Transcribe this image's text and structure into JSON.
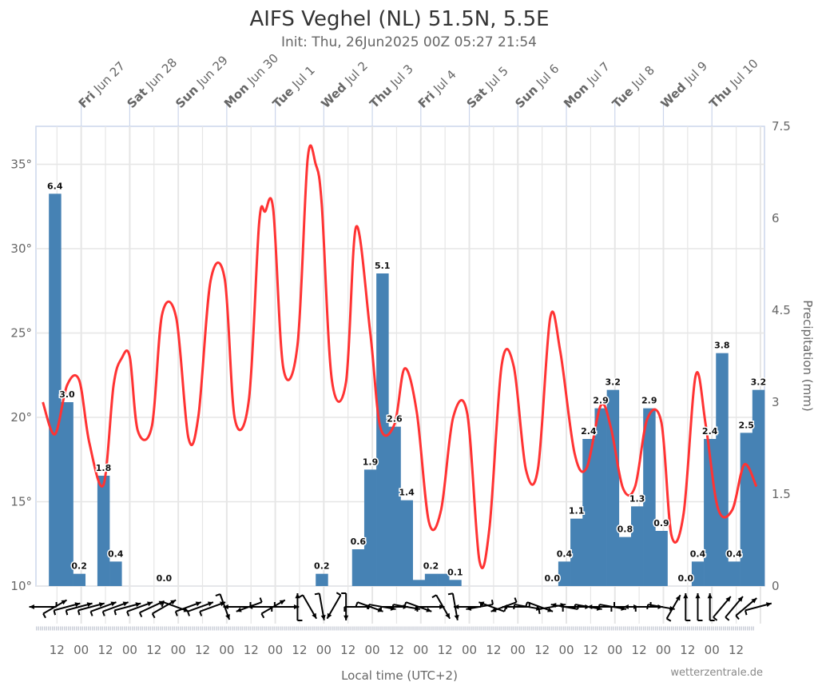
{
  "chart_data": {
    "type": "bar+line",
    "title": "AIFS Veghel (NL) 51.5N, 5.5E",
    "subtitle": "Init: Thu, 26Jun2025 00Z 05:27 21:54",
    "xlabel": "Local time (UTC+2)",
    "ylabel_right": "Precipitation (mm)",
    "credit": "wetterzentrale.de",
    "y_left": {
      "range": [
        10,
        37.25
      ],
      "ticks": [
        "10°",
        "15°",
        "20°",
        "25°",
        "30°",
        "35°"
      ],
      "tick_values": [
        10,
        15,
        20,
        25,
        30,
        35
      ]
    },
    "y_right": {
      "range": [
        0,
        7.5
      ],
      "ticks": [
        "0",
        "1.5",
        "3",
        "4.5",
        "6",
        "7.5"
      ],
      "tick_values": [
        0,
        1.5,
        3,
        4.5,
        6,
        7.5
      ]
    },
    "x_range": [
      "Jun 26 02:00",
      "Jul 11 02:00"
    ],
    "grid": true,
    "top_day_labels": [
      {
        "wd": "Fri",
        "date": "Jun 27"
      },
      {
        "wd": "Sat",
        "date": "Jun 28"
      },
      {
        "wd": "Sun",
        "date": "Jun 29"
      },
      {
        "wd": "Mon",
        "date": "Jun 30"
      },
      {
        "wd": "Tue",
        "date": "Jul 1"
      },
      {
        "wd": "Wed",
        "date": "Jul 2"
      },
      {
        "wd": "Thu",
        "date": "Jul 3"
      },
      {
        "wd": "Fri",
        "date": "Jul 4"
      },
      {
        "wd": "Sat",
        "date": "Jul 5"
      },
      {
        "wd": "Sun",
        "date": "Jul 6"
      },
      {
        "wd": "Mon",
        "date": "Jul 7"
      },
      {
        "wd": "Tue",
        "date": "Jul 8"
      },
      {
        "wd": "Wed",
        "date": "Jul 9"
      },
      {
        "wd": "Thu",
        "date": "Jul 10"
      }
    ],
    "bottom_ticks": [
      "12",
      "00",
      "12",
      "00",
      "12",
      "00",
      "12",
      "00",
      "12",
      "00",
      "12",
      "00",
      "12",
      "00",
      "12",
      "00",
      "12",
      "00",
      "12",
      "00",
      "12",
      "00",
      "12",
      "00",
      "12",
      "00",
      "12",
      "00",
      "12"
    ],
    "colors": {
      "precipitation": "#4682b4",
      "temperature": "#ff3333",
      "grid": "#e6e6e6",
      "frame": "#ccd6eb",
      "wind": "#000000"
    },
    "precipitation_6h": [
      {
        "t": "Jun 26 08:00",
        "v": 6.4,
        "label": "6.4"
      },
      {
        "t": "Jun 26 14:00",
        "v": 3.0,
        "label": "3.0"
      },
      {
        "t": "Jun 26 20:00",
        "v": 0.2,
        "label": "0.2"
      },
      {
        "t": "Jun 27 08:00",
        "v": 1.8,
        "label": "1.8"
      },
      {
        "t": "Jun 27 14:00",
        "v": 0.4,
        "label": "0.4"
      },
      {
        "t": "Jun 28 14:00",
        "v": 0.0,
        "label": "0.0"
      },
      {
        "t": "Jul 1 20:00",
        "v": 0.2,
        "label": "0.2"
      },
      {
        "t": "Jul 2 14:00",
        "v": 0.6,
        "label": "0.6"
      },
      {
        "t": "Jul 2 20:00",
        "v": 1.9,
        "label": "1.9"
      },
      {
        "t": "Jul 3 02:00",
        "v": 5.1,
        "label": "5.1"
      },
      {
        "t": "Jul 3 08:00",
        "v": 2.6,
        "label": "2.6"
      },
      {
        "t": "Jul 3 14:00",
        "v": 1.4,
        "label": "1.4"
      },
      {
        "t": "Jul 3 20:00",
        "v": 0.1,
        "label": ""
      },
      {
        "t": "Jul 4 02:00",
        "v": 0.2,
        "label": "0.2"
      },
      {
        "t": "Jul 4 08:00",
        "v": 0.2,
        "label": ""
      },
      {
        "t": "Jul 4 14:00",
        "v": 0.1,
        "label": "0.1"
      },
      {
        "t": "Jul 6 14:00",
        "v": 0.0,
        "label": "0.0"
      },
      {
        "t": "Jul 6 20:00",
        "v": 0.4,
        "label": "0.4"
      },
      {
        "t": "Jul 7 02:00",
        "v": 1.1,
        "label": "1.1"
      },
      {
        "t": "Jul 7 08:00",
        "v": 2.4,
        "label": "2.4"
      },
      {
        "t": "Jul 7 14:00",
        "v": 2.9,
        "label": "2.9"
      },
      {
        "t": "Jul 7 20:00",
        "v": 3.2,
        "label": "3.2"
      },
      {
        "t": "Jul 8 02:00",
        "v": 0.8,
        "label": "0.8"
      },
      {
        "t": "Jul 8 08:00",
        "v": 1.3,
        "label": "1.3"
      },
      {
        "t": "Jul 8 14:00",
        "v": 2.9,
        "label": "2.9"
      },
      {
        "t": "Jul 8 20:00",
        "v": 0.9,
        "label": "0.9"
      },
      {
        "t": "Jul 9 08:00",
        "v": 0.0,
        "label": "0.0"
      },
      {
        "t": "Jul 9 14:00",
        "v": 0.4,
        "label": "0.4"
      },
      {
        "t": "Jul 9 20:00",
        "v": 2.4,
        "label": "2.4"
      },
      {
        "t": "Jul 10 02:00",
        "v": 3.8,
        "label": "3.8"
      },
      {
        "t": "Jul 10 08:00",
        "v": 0.4,
        "label": "0.4"
      },
      {
        "t": "Jul 10 14:00",
        "v": 2.5,
        "label": "2.5"
      },
      {
        "t": "Jul 10 20:00",
        "v": 3.2,
        "label": "3.2"
      }
    ],
    "temperature": [
      [
        "Jun 26 05:00",
        20.9
      ],
      [
        "Jun 26 11:00",
        19.0
      ],
      [
        "Jun 26 17:00",
        21.9
      ],
      [
        "Jun 26 23:00",
        22.2
      ],
      [
        "Jun 27 04:00",
        18.5
      ],
      [
        "Jun 27 11:00",
        16.0
      ],
      [
        "Jun 27 16:00",
        21.9
      ],
      [
        "Jun 27 20:00",
        23.5
      ],
      [
        "Jun 28 00:00",
        23.6
      ],
      [
        "Jun 28 04:00",
        19.2
      ],
      [
        "Jun 28 11:00",
        19.5
      ],
      [
        "Jun 28 16:00",
        26.1
      ],
      [
        "Jun 28 23:00",
        25.9
      ],
      [
        "Jun 29 05:00",
        18.8
      ],
      [
        "Jun 29 10:00",
        20.1
      ],
      [
        "Jun 29 16:00",
        28.1
      ],
      [
        "Jun 29 23:00",
        28.2
      ],
      [
        "Jun 30 04:00",
        19.9
      ],
      [
        "Jun 30 11:00",
        21.1
      ],
      [
        "Jun 30 16:00",
        31.5
      ],
      [
        "Jun 30 19:00",
        32.2
      ],
      [
        "Jun 30 23:00",
        32.3
      ],
      [
        "Jul 1 04:00",
        22.9
      ],
      [
        "Jul 1 11:00",
        24.3
      ],
      [
        "Jul 1 16:00",
        35.3
      ],
      [
        "Jul 1 20:00",
        35.0
      ],
      [
        "Jul 1 23:00",
        32.6
      ],
      [
        "Jul 2 04:00",
        22.2
      ],
      [
        "Jul 2 11:00",
        22.1
      ],
      [
        "Jul 2 16:00",
        31.3
      ],
      [
        "Jul 2 23:00",
        25.0
      ],
      [
        "Jul 3 04:00",
        19.4
      ],
      [
        "Jul 3 11:00",
        19.6
      ],
      [
        "Jul 3 16:00",
        22.9
      ],
      [
        "Jul 3 22:00",
        20.3
      ],
      [
        "Jul 4 04:00",
        13.8
      ],
      [
        "Jul 4 10:00",
        14.5
      ],
      [
        "Jul 4 16:00",
        20.0
      ],
      [
        "Jul 4 23:00",
        20.2
      ],
      [
        "Jul 5 05:00",
        11.5
      ],
      [
        "Jul 5 10:00",
        13.5
      ],
      [
        "Jul 5 16:00",
        23.1
      ],
      [
        "Jul 5 22:00",
        23.0
      ],
      [
        "Jul 6 04:00",
        16.9
      ],
      [
        "Jul 6 10:00",
        17.0
      ],
      [
        "Jul 6 16:00",
        25.9
      ],
      [
        "Jul 6 21:00",
        23.9
      ],
      [
        "Jul 7 04:00",
        17.9
      ],
      [
        "Jul 7 10:00",
        17.0
      ],
      [
        "Jul 7 17:00",
        20.7
      ],
      [
        "Jul 7 22:00",
        19.4
      ],
      [
        "Jul 8 04:00",
        15.8
      ],
      [
        "Jul 8 10:00",
        15.9
      ],
      [
        "Jul 8 16:00",
        19.9
      ],
      [
        "Jul 8 23:00",
        19.7
      ],
      [
        "Jul 9 04:00",
        13.0
      ],
      [
        "Jul 9 10:00",
        14.3
      ],
      [
        "Jul 9 16:00",
        22.5
      ],
      [
        "Jul 9 21:00",
        19.5
      ],
      [
        "Jul 10 03:00",
        14.6
      ],
      [
        "Jul 10 10:00",
        14.5
      ],
      [
        "Jul 10 16:00",
        17.2
      ],
      [
        "Jul 10 22:00",
        15.9
      ]
    ],
    "wind_arrow_directions_deg": [
      180,
      -30,
      -15,
      -15,
      -15,
      -20,
      -20,
      -15,
      -20,
      -25,
      -30,
      20,
      -20,
      -20,
      -20,
      70,
      180,
      160,
      180,
      -30,
      0,
      -90,
      60,
      80,
      120,
      90,
      0,
      20,
      10,
      0,
      10,
      20,
      0,
      60,
      80,
      180,
      170,
      200,
      160,
      180,
      10,
      20,
      -10,
      190,
      0,
      10,
      180,
      10,
      0,
      180,
      0,
      10,
      -60,
      -90,
      -90,
      -90,
      -50,
      -50,
      -40,
      -15
    ]
  }
}
